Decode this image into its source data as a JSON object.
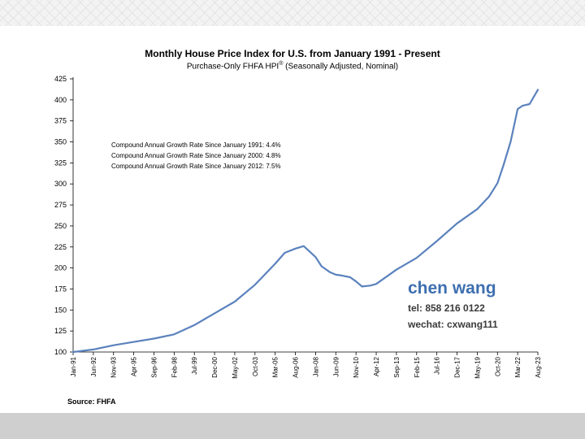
{
  "chart_data": {
    "type": "line",
    "title": "Monthly House Price Index for U.S. from January 1991 - Present",
    "subtitle": "Purchase-Only FHFA HPI",
    "subtitle_mark": "®",
    "subtitle_suffix": " (Seasonally Adjusted, Nominal)",
    "xlabel": "",
    "ylabel": "",
    "ylim": [
      100,
      425
    ],
    "yticks": [
      100,
      125,
      150,
      175,
      200,
      225,
      250,
      275,
      300,
      325,
      350,
      375,
      400,
      425
    ],
    "xticks": [
      "Jan-91",
      "Jun-92",
      "Nov-93",
      "Apr-95",
      "Sep-96",
      "Feb-98",
      "Jul-99",
      "Dec-00",
      "May-02",
      "Oct-03",
      "Mar-05",
      "Aug-06",
      "Jan-08",
      "Jun-09",
      "Nov-10",
      "Apr-12",
      "Sep-13",
      "Feb-15",
      "Jul-16",
      "Dec-17",
      "May-19",
      "Oct-20",
      "Mar-22",
      "Aug-23"
    ],
    "grid": false,
    "line_color": "#5b82bd",
    "series": [
      {
        "x": [
          "Jan-91",
          "Jun-92",
          "Nov-93",
          "Apr-95",
          "Sep-96",
          "Feb-98",
          "Jul-99",
          "Dec-00",
          "May-02",
          "Oct-03",
          "Mar-05",
          "Nov-05",
          "Aug-06",
          "Mar-07",
          "Jan-08",
          "Jun-08",
          "Jan-09",
          "Jun-09",
          "Nov-09",
          "Jun-10",
          "Nov-10",
          "Apr-11",
          "Nov-11",
          "Apr-12",
          "Sep-13",
          "Feb-15",
          "Jul-16",
          "Dec-17",
          "May-19",
          "Mar-20",
          "Oct-20",
          "Mar-21",
          "Sep-21",
          "Mar-22",
          "Jul-22",
          "Jan-23",
          "Aug-23"
        ],
        "values": [
          100,
          103,
          108,
          112,
          116,
          121,
          132,
          146,
          160,
          180,
          205,
          218,
          223,
          226,
          213,
          202,
          195,
          192,
          191,
          189,
          184,
          178,
          179,
          181,
          198,
          212,
          232,
          253,
          270,
          285,
          301,
          322,
          350,
          389,
          393,
          395,
          412
        ]
      }
    ],
    "annotations": [
      "Compound Annual Growth Rate Since January 1991:  4.4%",
      "Compound Annual Growth Rate Since January 2000:  4.8%",
      "Compound Annual Growth Rate Since January 2012:  7.5%"
    ]
  },
  "contact": {
    "name": "chen wang",
    "tel": "tel: 858 216 0122",
    "wechat": "wechat: cxwang111"
  },
  "source": "Source: FHFA"
}
